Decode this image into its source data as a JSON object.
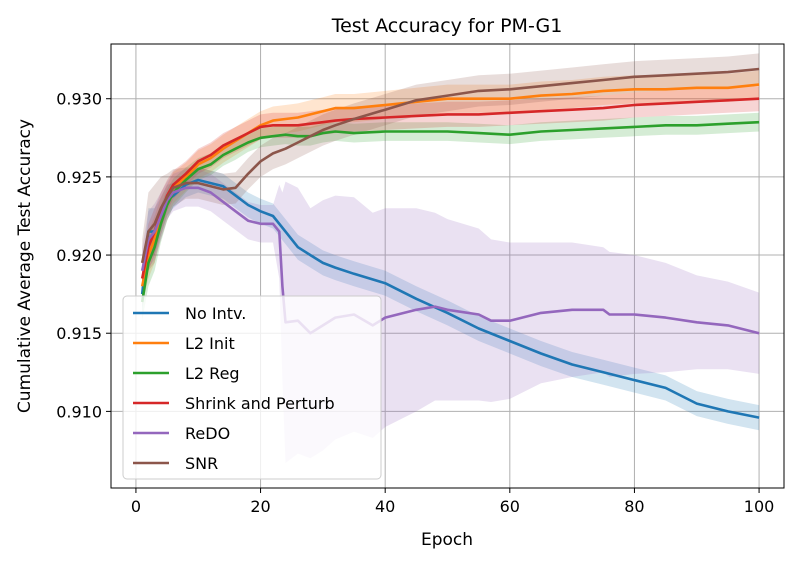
{
  "chart_data": {
    "type": "line",
    "title": "Test Accuracy for PM-G1",
    "xlabel": "Epoch",
    "ylabel": "Cumulative Average Test Accuracy",
    "xlim": [
      -4,
      104
    ],
    "ylim": [
      0.9051,
      0.9335
    ],
    "xticks": [
      0,
      20,
      40,
      60,
      80,
      100
    ],
    "xtick_labels": [
      "0",
      "20",
      "40",
      "60",
      "80",
      "100"
    ],
    "yticks": [
      0.91,
      0.915,
      0.92,
      0.925,
      0.93
    ],
    "ytick_labels": [
      "0.910",
      "0.915",
      "0.920",
      "0.925",
      "0.930"
    ],
    "grid": true,
    "legend_position": "lower-left",
    "series": [
      {
        "name": "No Intv.",
        "color": "#1f77b4",
        "x": [
          1,
          2,
          3,
          4,
          5,
          6,
          8,
          10,
          12,
          14,
          16,
          18,
          20,
          22,
          24,
          26,
          28,
          30,
          32,
          35,
          40,
          45,
          50,
          55,
          60,
          65,
          70,
          75,
          80,
          85,
          90,
          95,
          100
        ],
        "y": [
          0.9175,
          0.9215,
          0.9215,
          0.9225,
          0.9235,
          0.9238,
          0.9245,
          0.9248,
          0.9246,
          0.9244,
          0.9238,
          0.9232,
          0.9228,
          0.9225,
          0.9215,
          0.9205,
          0.92,
          0.9195,
          0.9192,
          0.9188,
          0.9182,
          0.9172,
          0.9163,
          0.9153,
          0.9145,
          0.9137,
          0.913,
          0.9125,
          0.912,
          0.9115,
          0.9105,
          0.91,
          0.9096
        ],
        "band": [
          0.0012,
          0.0015,
          0.0015,
          0.0012,
          0.001,
          0.0008,
          0.0008,
          0.0008,
          0.0008,
          0.0008,
          0.0008,
          0.0008,
          0.0008,
          0.0008,
          0.0008,
          0.0008,
          0.0008,
          0.0008,
          0.0008,
          0.0008,
          0.0008,
          0.0008,
          0.0008,
          0.0008,
          0.0008,
          0.0008,
          0.0008,
          0.0008,
          0.0008,
          0.0008,
          0.0008,
          0.0008,
          0.0008
        ]
      },
      {
        "name": "L2 Init",
        "color": "#ff7f0e",
        "x": [
          1,
          2,
          3,
          4,
          5,
          6,
          8,
          10,
          12,
          14,
          16,
          18,
          20,
          22,
          24,
          26,
          28,
          30,
          32,
          35,
          40,
          45,
          50,
          55,
          60,
          65,
          70,
          75,
          80,
          85,
          90,
          95,
          100
        ],
        "y": [
          0.918,
          0.92,
          0.921,
          0.9225,
          0.9235,
          0.9243,
          0.925,
          0.9258,
          0.9262,
          0.9268,
          0.9273,
          0.9278,
          0.9283,
          0.9286,
          0.9287,
          0.9288,
          0.929,
          0.9292,
          0.9294,
          0.9294,
          0.9296,
          0.9298,
          0.93,
          0.93,
          0.93,
          0.9302,
          0.9303,
          0.9305,
          0.9306,
          0.9306,
          0.9307,
          0.9307,
          0.9309
        ],
        "band": [
          0.0012,
          0.0015,
          0.0015,
          0.0012,
          0.001,
          0.001,
          0.0009,
          0.0009,
          0.0009,
          0.0009,
          0.0009,
          0.0009,
          0.0009,
          0.0009,
          0.0009,
          0.0009,
          0.0009,
          0.0009,
          0.0009,
          0.0009,
          0.0009,
          0.0009,
          0.0009,
          0.0009,
          0.0009,
          0.0009,
          0.0009,
          0.0009,
          0.0009,
          0.0009,
          0.0009,
          0.0009,
          0.0009
        ]
      },
      {
        "name": "L2 Reg",
        "color": "#2ca02c",
        "x": [
          1,
          2,
          3,
          4,
          5,
          6,
          8,
          10,
          12,
          14,
          16,
          18,
          20,
          22,
          24,
          26,
          28,
          30,
          32,
          35,
          40,
          45,
          50,
          55,
          60,
          65,
          70,
          75,
          80,
          85,
          90,
          95,
          100
        ],
        "y": [
          0.917,
          0.9195,
          0.9205,
          0.922,
          0.9232,
          0.924,
          0.9248,
          0.9255,
          0.9258,
          0.9264,
          0.9268,
          0.9272,
          0.9275,
          0.9276,
          0.9277,
          0.9276,
          0.9276,
          0.9278,
          0.9279,
          0.9278,
          0.9279,
          0.9279,
          0.9279,
          0.9278,
          0.9277,
          0.9279,
          0.928,
          0.9281,
          0.9282,
          0.9283,
          0.9283,
          0.9284,
          0.9285
        ],
        "band": [
          0.0012,
          0.0015,
          0.0015,
          0.0012,
          0.001,
          0.0009,
          0.0008,
          0.0007,
          0.0007,
          0.0007,
          0.0007,
          0.0006,
          0.0006,
          0.0006,
          0.0006,
          0.0006,
          0.0006,
          0.0006,
          0.0006,
          0.0006,
          0.0006,
          0.0006,
          0.0006,
          0.0006,
          0.0006,
          0.0006,
          0.0006,
          0.0006,
          0.0006,
          0.0006,
          0.0006,
          0.0006,
          0.0006
        ]
      },
      {
        "name": "Shrink and Perturb",
        "color": "#d62728",
        "x": [
          1,
          2,
          3,
          4,
          5,
          6,
          8,
          10,
          12,
          14,
          16,
          18,
          20,
          22,
          24,
          26,
          28,
          30,
          32,
          35,
          40,
          45,
          50,
          55,
          60,
          65,
          70,
          75,
          80,
          85,
          90,
          95,
          100
        ],
        "y": [
          0.9185,
          0.9205,
          0.9215,
          0.9228,
          0.9238,
          0.9245,
          0.9252,
          0.926,
          0.9264,
          0.927,
          0.9274,
          0.9278,
          0.9282,
          0.9283,
          0.9283,
          0.9283,
          0.9284,
          0.9285,
          0.9286,
          0.9287,
          0.9288,
          0.9289,
          0.929,
          0.929,
          0.9291,
          0.9292,
          0.9293,
          0.9294,
          0.9296,
          0.9297,
          0.9298,
          0.9299,
          0.93
        ],
        "band": [
          0.0012,
          0.0015,
          0.0015,
          0.0012,
          0.001,
          0.0009,
          0.0008,
          0.0008,
          0.0008,
          0.0008,
          0.0008,
          0.0008,
          0.0008,
          0.0008,
          0.0008,
          0.0008,
          0.0008,
          0.0008,
          0.0008,
          0.0008,
          0.0008,
          0.0008,
          0.0008,
          0.0008,
          0.0008,
          0.0008,
          0.0008,
          0.0008,
          0.0008,
          0.0008,
          0.0008,
          0.0008,
          0.0008
        ]
      },
      {
        "name": "ReDO",
        "color": "#9467bd",
        "x": [
          1,
          2,
          3,
          4,
          5,
          6,
          8,
          10,
          12,
          14,
          16,
          18,
          20,
          22,
          23,
          23.5,
          24,
          26,
          28,
          30,
          32,
          35,
          38,
          40,
          45,
          48,
          50,
          55,
          57,
          60,
          65,
          70,
          75,
          76,
          80,
          85,
          90,
          95,
          100
        ],
        "y": [
          0.919,
          0.921,
          0.9215,
          0.9225,
          0.9235,
          0.924,
          0.9243,
          0.9243,
          0.924,
          0.9234,
          0.9228,
          0.9222,
          0.922,
          0.922,
          0.9215,
          0.918,
          0.9157,
          0.9158,
          0.915,
          0.9155,
          0.916,
          0.9162,
          0.9155,
          0.916,
          0.9165,
          0.9167,
          0.9165,
          0.9162,
          0.9158,
          0.9158,
          0.9163,
          0.9165,
          0.9165,
          0.9162,
          0.9162,
          0.916,
          0.9157,
          0.9155,
          0.915
        ],
        "band": [
          0.0015,
          0.0018,
          0.0018,
          0.0015,
          0.0012,
          0.0012,
          0.0012,
          0.0012,
          0.0012,
          0.0012,
          0.0012,
          0.0012,
          0.0012,
          0.0012,
          0.003,
          0.006,
          0.009,
          0.0085,
          0.008,
          0.008,
          0.0078,
          0.0075,
          0.0072,
          0.007,
          0.0065,
          0.006,
          0.0058,
          0.0055,
          0.0052,
          0.005,
          0.0045,
          0.0043,
          0.004,
          0.004,
          0.0038,
          0.0035,
          0.003,
          0.0028,
          0.0026
        ]
      },
      {
        "name": "SNR",
        "color": "#8c564b",
        "x": [
          1,
          2,
          3,
          4,
          5,
          6,
          8,
          10,
          12,
          14,
          16,
          18,
          20,
          22,
          24,
          26,
          28,
          30,
          32,
          35,
          40,
          45,
          50,
          55,
          60,
          65,
          70,
          75,
          80,
          85,
          90,
          95,
          100
        ],
        "y": [
          0.9195,
          0.9215,
          0.922,
          0.923,
          0.9237,
          0.9243,
          0.9246,
          0.9246,
          0.9244,
          0.9242,
          0.9243,
          0.9252,
          0.926,
          0.9265,
          0.9268,
          0.9272,
          0.9276,
          0.928,
          0.9283,
          0.9287,
          0.9293,
          0.9299,
          0.9302,
          0.9305,
          0.9306,
          0.9308,
          0.931,
          0.9312,
          0.9314,
          0.9315,
          0.9316,
          0.9317,
          0.9319
        ],
        "band": [
          0.0015,
          0.0025,
          0.0025,
          0.002,
          0.0015,
          0.0012,
          0.001,
          0.001,
          0.001,
          0.001,
          0.001,
          0.001,
          0.001,
          0.001,
          0.001,
          0.001,
          0.001,
          0.001,
          0.001,
          0.001,
          0.001,
          0.001,
          0.001,
          0.001,
          0.001,
          0.001,
          0.001,
          0.001,
          0.001,
          0.001,
          0.001,
          0.001,
          0.001
        ]
      }
    ]
  }
}
